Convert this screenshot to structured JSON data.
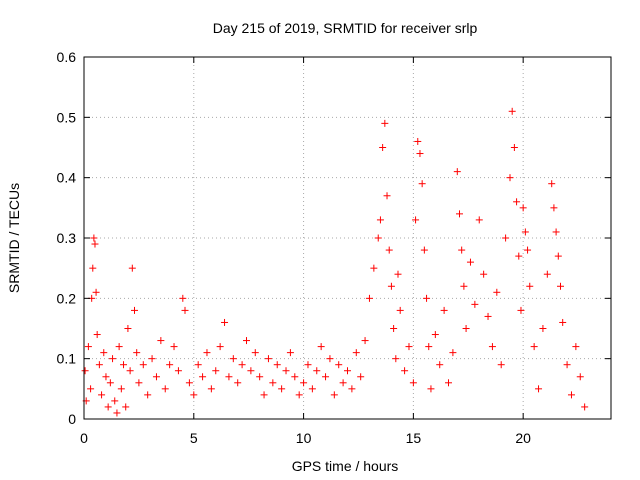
{
  "chart_data": {
    "type": "scatter",
    "title": "Day 215 of 2019, SRMTID for receiver srlp",
    "xlabel": "GPS time / hours",
    "ylabel": "SRMTID / TECUs",
    "xlim": [
      0,
      24
    ],
    "ylim": [
      0,
      0.6
    ],
    "x_ticks": [
      0,
      5,
      10,
      15,
      20
    ],
    "y_ticks": [
      0,
      0.1,
      0.2,
      0.3,
      0.4,
      0.5,
      0.6
    ],
    "x_tick_labels": [
      "0",
      "5",
      "10",
      "15",
      "20"
    ],
    "y_tick_labels": [
      "0",
      "0.1",
      "0.2",
      "0.3",
      "0.4",
      "0.5",
      "0.6"
    ],
    "grid": true,
    "marker": "plus",
    "series": [
      {
        "name": "SRMTID",
        "color": "#ff0000",
        "points": [
          [
            0.05,
            0.08
          ],
          [
            0.1,
            0.03
          ],
          [
            0.2,
            0.12
          ],
          [
            0.3,
            0.05
          ],
          [
            0.35,
            0.2
          ],
          [
            0.4,
            0.25
          ],
          [
            0.45,
            0.3
          ],
          [
            0.5,
            0.29
          ],
          [
            0.55,
            0.21
          ],
          [
            0.6,
            0.14
          ],
          [
            0.7,
            0.09
          ],
          [
            0.8,
            0.04
          ],
          [
            0.9,
            0.11
          ],
          [
            1.0,
            0.07
          ],
          [
            1.1,
            0.02
          ],
          [
            1.2,
            0.06
          ],
          [
            1.3,
            0.1
          ],
          [
            1.4,
            0.03
          ],
          [
            1.5,
            0.01
          ],
          [
            1.6,
            0.12
          ],
          [
            1.7,
            0.05
          ],
          [
            1.8,
            0.09
          ],
          [
            1.9,
            0.02
          ],
          [
            2.0,
            0.15
          ],
          [
            2.1,
            0.08
          ],
          [
            2.2,
            0.25
          ],
          [
            2.3,
            0.18
          ],
          [
            2.4,
            0.11
          ],
          [
            2.5,
            0.06
          ],
          [
            2.7,
            0.09
          ],
          [
            2.9,
            0.04
          ],
          [
            3.1,
            0.1
          ],
          [
            3.3,
            0.07
          ],
          [
            3.5,
            0.13
          ],
          [
            3.7,
            0.05
          ],
          [
            3.9,
            0.09
          ],
          [
            4.1,
            0.12
          ],
          [
            4.3,
            0.08
          ],
          [
            4.5,
            0.2
          ],
          [
            4.6,
            0.18
          ],
          [
            4.8,
            0.06
          ],
          [
            5.0,
            0.04
          ],
          [
            5.2,
            0.09
          ],
          [
            5.4,
            0.07
          ],
          [
            5.6,
            0.11
          ],
          [
            5.8,
            0.05
          ],
          [
            6.0,
            0.08
          ],
          [
            6.2,
            0.12
          ],
          [
            6.4,
            0.16
          ],
          [
            6.6,
            0.07
          ],
          [
            6.8,
            0.1
          ],
          [
            7.0,
            0.06
          ],
          [
            7.2,
            0.09
          ],
          [
            7.4,
            0.13
          ],
          [
            7.6,
            0.08
          ],
          [
            7.8,
            0.11
          ],
          [
            8.0,
            0.07
          ],
          [
            8.2,
            0.04
          ],
          [
            8.4,
            0.1
          ],
          [
            8.6,
            0.06
          ],
          [
            8.8,
            0.09
          ],
          [
            9.0,
            0.05
          ],
          [
            9.2,
            0.08
          ],
          [
            9.4,
            0.11
          ],
          [
            9.6,
            0.07
          ],
          [
            9.8,
            0.04
          ],
          [
            10.0,
            0.06
          ],
          [
            10.2,
            0.09
          ],
          [
            10.4,
            0.05
          ],
          [
            10.6,
            0.08
          ],
          [
            10.8,
            0.12
          ],
          [
            11.0,
            0.07
          ],
          [
            11.2,
            0.1
          ],
          [
            11.4,
            0.04
          ],
          [
            11.6,
            0.09
          ],
          [
            11.8,
            0.06
          ],
          [
            12.0,
            0.08
          ],
          [
            12.2,
            0.05
          ],
          [
            12.4,
            0.11
          ],
          [
            12.6,
            0.07
          ],
          [
            12.8,
            0.13
          ],
          [
            13.0,
            0.2
          ],
          [
            13.2,
            0.25
          ],
          [
            13.4,
            0.3
          ],
          [
            13.5,
            0.33
          ],
          [
            13.6,
            0.45
          ],
          [
            13.7,
            0.49
          ],
          [
            13.8,
            0.37
          ],
          [
            13.9,
            0.28
          ],
          [
            14.0,
            0.22
          ],
          [
            14.1,
            0.15
          ],
          [
            14.2,
            0.1
          ],
          [
            14.3,
            0.24
          ],
          [
            14.4,
            0.18
          ],
          [
            14.6,
            0.08
          ],
          [
            14.8,
            0.12
          ],
          [
            15.0,
            0.06
          ],
          [
            15.1,
            0.33
          ],
          [
            15.2,
            0.46
          ],
          [
            15.3,
            0.44
          ],
          [
            15.4,
            0.39
          ],
          [
            15.5,
            0.28
          ],
          [
            15.6,
            0.2
          ],
          [
            15.7,
            0.12
          ],
          [
            15.8,
            0.05
          ],
          [
            16.0,
            0.14
          ],
          [
            16.2,
            0.09
          ],
          [
            16.4,
            0.18
          ],
          [
            16.6,
            0.06
          ],
          [
            16.8,
            0.11
          ],
          [
            17.0,
            0.41
          ],
          [
            17.1,
            0.34
          ],
          [
            17.2,
            0.28
          ],
          [
            17.3,
            0.22
          ],
          [
            17.4,
            0.15
          ],
          [
            17.6,
            0.26
          ],
          [
            17.8,
            0.19
          ],
          [
            18.0,
            0.33
          ],
          [
            18.2,
            0.24
          ],
          [
            18.4,
            0.17
          ],
          [
            18.6,
            0.12
          ],
          [
            18.8,
            0.21
          ],
          [
            19.0,
            0.09
          ],
          [
            19.2,
            0.3
          ],
          [
            19.4,
            0.4
          ],
          [
            19.5,
            0.51
          ],
          [
            19.6,
            0.45
          ],
          [
            19.7,
            0.36
          ],
          [
            19.8,
            0.27
          ],
          [
            19.9,
            0.18
          ],
          [
            20.0,
            0.35
          ],
          [
            20.1,
            0.31
          ],
          [
            20.2,
            0.28
          ],
          [
            20.3,
            0.22
          ],
          [
            20.5,
            0.12
          ],
          [
            20.7,
            0.05
          ],
          [
            20.9,
            0.15
          ],
          [
            21.1,
            0.24
          ],
          [
            21.3,
            0.39
          ],
          [
            21.4,
            0.35
          ],
          [
            21.5,
            0.31
          ],
          [
            21.6,
            0.27
          ],
          [
            21.7,
            0.22
          ],
          [
            21.8,
            0.16
          ],
          [
            22.0,
            0.09
          ],
          [
            22.2,
            0.04
          ],
          [
            22.4,
            0.12
          ],
          [
            22.6,
            0.07
          ],
          [
            22.8,
            0.02
          ]
        ]
      }
    ]
  }
}
